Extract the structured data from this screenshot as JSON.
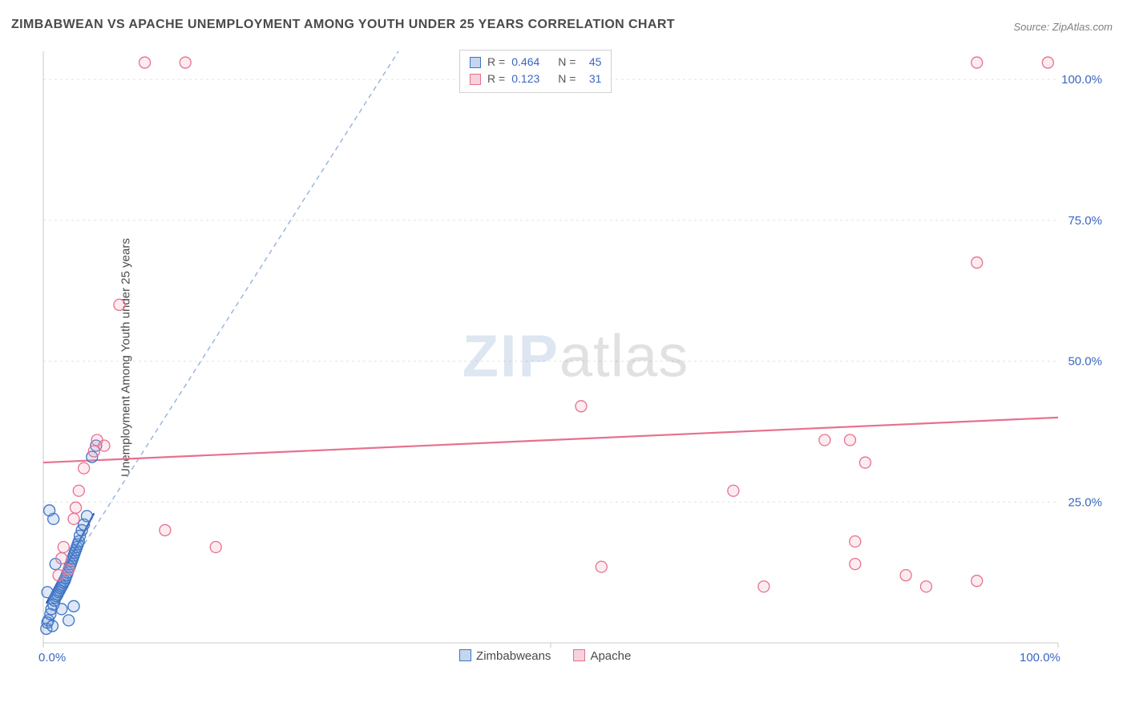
{
  "title": "ZIMBABWEAN VS APACHE UNEMPLOYMENT AMONG YOUTH UNDER 25 YEARS CORRELATION CHART",
  "source": "Source: ZipAtlas.com",
  "ylabel": "Unemployment Among Youth under 25 years",
  "watermark": {
    "part1": "ZIP",
    "part2": "atlas"
  },
  "chart": {
    "type": "scatter",
    "background_color": "#ffffff",
    "grid_color": "#e2e2e2",
    "grid_dash": "3,4",
    "axis_line_color": "#c9c9c9",
    "xlim": [
      0,
      100
    ],
    "ylim": [
      0,
      105
    ],
    "x_ticks": [
      0,
      50,
      100
    ],
    "x_tick_labels": [
      "0.0%",
      "",
      "100.0%"
    ],
    "y_ticks": [
      25,
      50,
      75,
      100
    ],
    "y_tick_labels": [
      "25.0%",
      "50.0%",
      "75.0%",
      "100.0%"
    ],
    "tick_label_color": "#3a66c0",
    "tick_label_fontsize": 15,
    "marker_radius": 7,
    "marker_stroke_width": 1.3,
    "marker_fill_opacity": 0.22,
    "series": [
      {
        "name": "Zimbabweans",
        "color": "#6a98d8",
        "stroke": "#3f74c6",
        "R": "0.464",
        "N": "45",
        "trend": {
          "solid": {
            "x1": 0.3,
            "y1": 7,
            "x2": 5,
            "y2": 23,
            "color": "#2a56b5",
            "width": 2.2
          },
          "dashed": {
            "x1": 0.3,
            "y1": 7,
            "x2": 35,
            "y2": 105,
            "color": "#94b2de",
            "width": 1.4,
            "dash": "6,5"
          }
        },
        "points": [
          [
            0.3,
            2.5
          ],
          [
            0.4,
            3.6
          ],
          [
            0.5,
            4.0
          ],
          [
            0.7,
            5.1
          ],
          [
            0.8,
            6.0
          ],
          [
            1.0,
            6.8
          ],
          [
            1.1,
            7.5
          ],
          [
            1.2,
            8.0
          ],
          [
            1.3,
            8.3
          ],
          [
            1.4,
            8.6
          ],
          [
            1.5,
            9.0
          ],
          [
            1.6,
            9.3
          ],
          [
            1.7,
            9.7
          ],
          [
            1.8,
            10.0
          ],
          [
            1.9,
            10.3
          ],
          [
            2.0,
            10.7
          ],
          [
            2.1,
            11.0
          ],
          [
            2.2,
            11.5
          ],
          [
            2.3,
            12.0
          ],
          [
            2.4,
            12.5
          ],
          [
            2.5,
            13.0
          ],
          [
            2.6,
            13.5
          ],
          [
            2.7,
            14.0
          ],
          [
            2.8,
            14.5
          ],
          [
            2.9,
            15.0
          ],
          [
            3.0,
            15.5
          ],
          [
            3.1,
            16.0
          ],
          [
            3.2,
            16.5
          ],
          [
            3.3,
            17.0
          ],
          [
            3.4,
            17.5
          ],
          [
            3.5,
            18.0
          ],
          [
            3.6,
            19.0
          ],
          [
            3.8,
            20.0
          ],
          [
            4.0,
            21.0
          ],
          [
            4.3,
            22.5
          ],
          [
            1.0,
            22.0
          ],
          [
            0.6,
            23.5
          ],
          [
            1.2,
            14.0
          ],
          [
            1.8,
            6.0
          ],
          [
            0.4,
            9.0
          ],
          [
            0.9,
            3.0
          ],
          [
            2.5,
            4.0
          ],
          [
            3.0,
            6.5
          ],
          [
            4.8,
            33.0
          ],
          [
            5.2,
            35.0
          ]
        ]
      },
      {
        "name": "Apache",
        "color": "#f1a8bc",
        "stroke": "#e6718f",
        "R": "0.123",
        "N": "31",
        "trend": {
          "solid": {
            "x1": 0,
            "y1": 32,
            "x2": 100,
            "y2": 40,
            "color": "#e6718f",
            "width": 2.2
          }
        },
        "points": [
          [
            1.5,
            12
          ],
          [
            1.8,
            15
          ],
          [
            2.0,
            17
          ],
          [
            2.5,
            13
          ],
          [
            3.0,
            22
          ],
          [
            3.2,
            24
          ],
          [
            3.5,
            27
          ],
          [
            4.0,
            31
          ],
          [
            5.0,
            34
          ],
          [
            5.3,
            36
          ],
          [
            6.0,
            35
          ],
          [
            10,
            103
          ],
          [
            14,
            103
          ],
          [
            7.5,
            60
          ],
          [
            12,
            20
          ],
          [
            17,
            17
          ],
          [
            53,
            42
          ],
          [
            55,
            13.5
          ],
          [
            68,
            27
          ],
          [
            71,
            10
          ],
          [
            77,
            36
          ],
          [
            79.5,
            36
          ],
          [
            80,
            14
          ],
          [
            80,
            18
          ],
          [
            81,
            32
          ],
          [
            85,
            12
          ],
          [
            87,
            10
          ],
          [
            92,
            11
          ],
          [
            92,
            103
          ],
          [
            92,
            67.5
          ],
          [
            99,
            103
          ]
        ]
      }
    ]
  },
  "stats_box": {
    "rows": [
      {
        "swatch_fill": "#c4d6ef",
        "swatch_border": "#3f74c6",
        "r_label": "R =",
        "r_val": "0.464",
        "n_label": "N =",
        "n_val": "45"
      },
      {
        "swatch_fill": "#f7d2dc",
        "swatch_border": "#e6718f",
        "r_label": "R =",
        "r_val": "0.123",
        "n_label": "N =",
        "n_val": "31"
      }
    ],
    "r_color": "#3a66c0"
  },
  "legend": {
    "items": [
      {
        "label": "Zimbabweans",
        "swatch_fill": "#c4d6ef",
        "swatch_border": "#3f74c6"
      },
      {
        "label": "Apache",
        "swatch_fill": "#f7d2dc",
        "swatch_border": "#e6718f"
      }
    ]
  }
}
